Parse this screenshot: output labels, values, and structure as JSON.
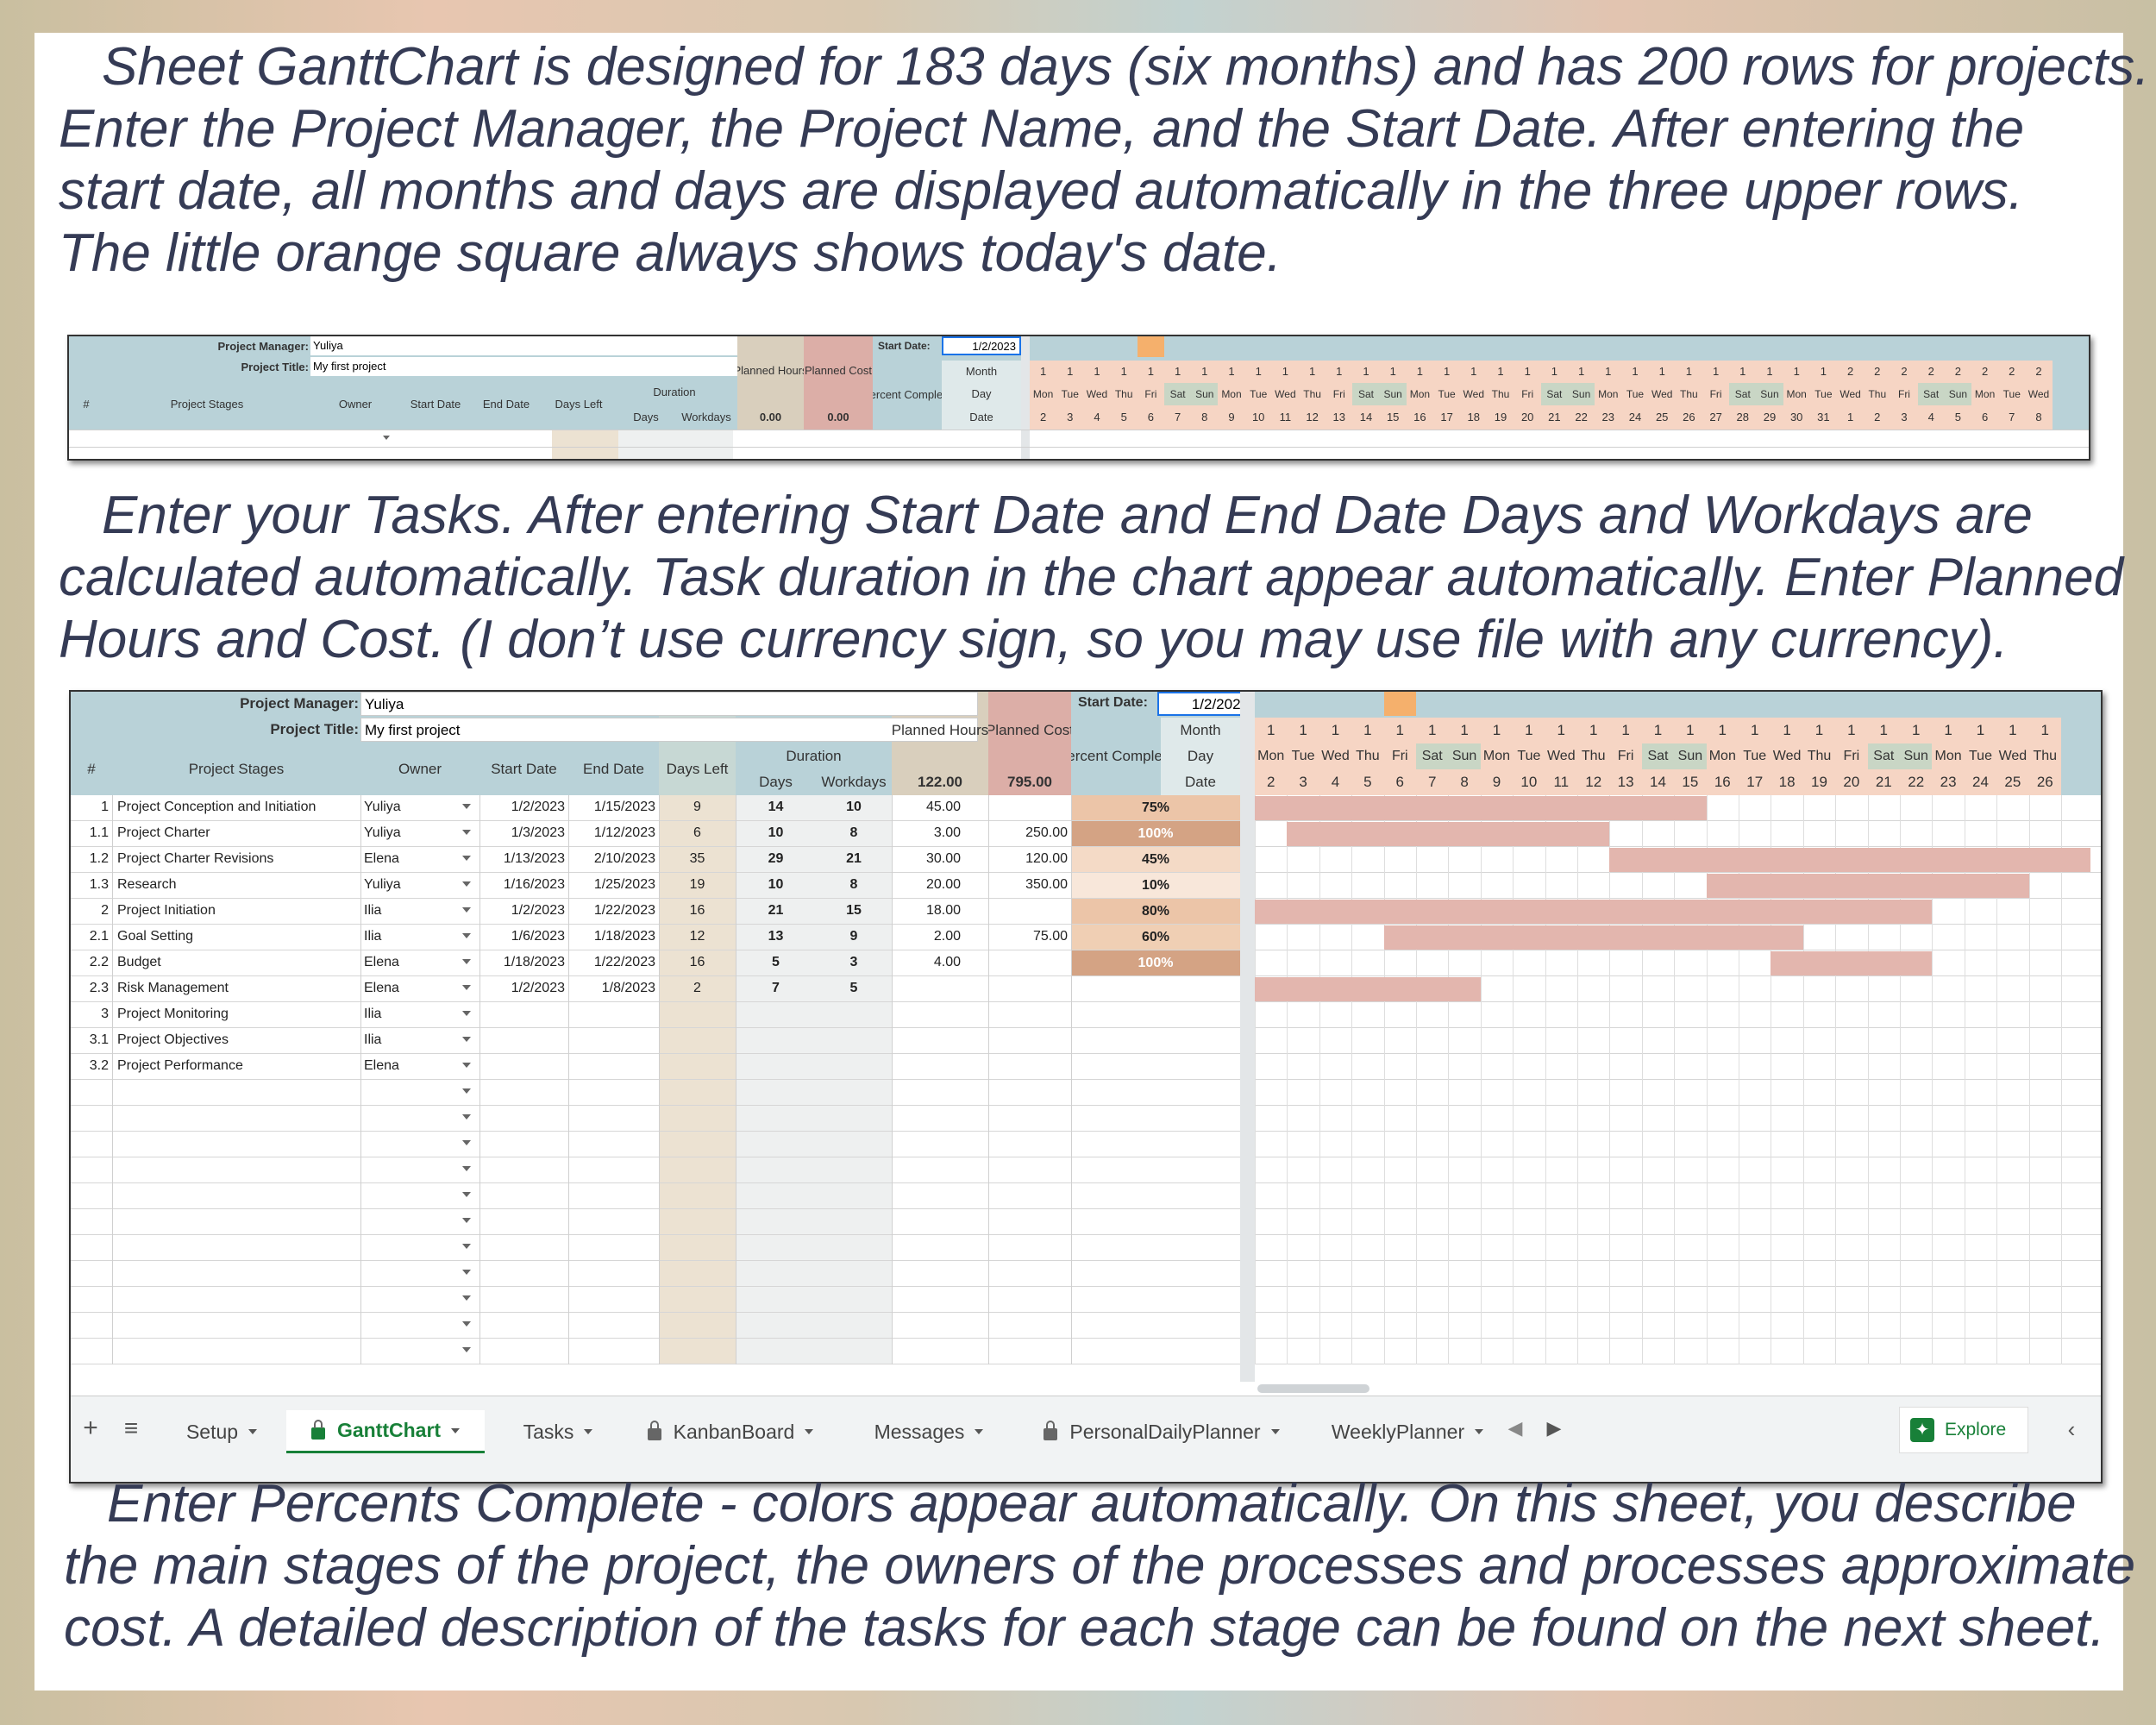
{
  "paragraphs": {
    "p1": [
      "Sheet GanttChart is designed for 183 days (six months) and has 200 rows for projects.",
      "Enter the Project Manager, the Project Name, and the Start Date. After entering the",
      "start date, all months and days are displayed automatically in the three upper rows.",
      "The little orange square always shows today's date."
    ],
    "p2": [
      "Enter your Tasks. After entering Start Date and End Date Days and Workdays are",
      "calculated automatically. Task duration in the chart appear automatically. Enter Planned",
      "Hours and Cost. (I don’t use currency sign, so you may use file with any currency)."
    ],
    "p3": [
      "Enter Percents Complete - colors appear automatically. On this sheet, you describe",
      "the main stages of the project, the owners of the processes and processes approximate",
      "cost. A detailed description of the tasks for each stage can be found on the next sheet."
    ]
  },
  "sheet": {
    "labels": {
      "manager": "Project Manager:",
      "title": "Project Title:",
      "start": "Start Date:",
      "hash": "#",
      "stages": "Project Stages",
      "owner": "Owner",
      "start_date": "Start Date",
      "end_date": "End Date",
      "days_left": "Days Left",
      "duration": "Duration",
      "days": "Days",
      "workdays": "Workdays",
      "planned_hours": "Planned Hours",
      "planned_cost": "Planned Cost",
      "percent": "Percent Complete",
      "month": "Month",
      "day": "Day",
      "date": "Date"
    },
    "manager": "Yuliya",
    "title": "My first project",
    "start": "1/2/2023",
    "totals_small": {
      "hours": "0.00",
      "cost": "0.00"
    },
    "totals": {
      "hours": "122.00",
      "cost": "795.00"
    },
    "days_small": [
      "Mon",
      "Tue",
      "Wed",
      "Thu",
      "Fri",
      "Sat",
      "Sun",
      "Mon",
      "Tue",
      "Wed",
      "Thu",
      "Fri",
      "Sat",
      "Sun",
      "Mon",
      "Tue",
      "Wed",
      "Thu",
      "Fri",
      "Sat",
      "Sun",
      "Mon",
      "Tue",
      "Wed",
      "Thu",
      "Fri",
      "Sat",
      "Sun",
      "Mon",
      "Tue",
      "Wed",
      "Thu",
      "Fri",
      "Sat",
      "Sun",
      "Mon",
      "Tue",
      "Wed"
    ],
    "months_small": [
      "1",
      "1",
      "1",
      "1",
      "1",
      "1",
      "1",
      "1",
      "1",
      "1",
      "1",
      "1",
      "1",
      "1",
      "1",
      "1",
      "1",
      "1",
      "1",
      "1",
      "1",
      "1",
      "1",
      "1",
      "1",
      "1",
      "1",
      "1",
      "1",
      "1",
      "2",
      "2",
      "2",
      "2",
      "2",
      "2",
      "2",
      "2"
    ],
    "dates_small": [
      "2",
      "3",
      "4",
      "5",
      "6",
      "7",
      "8",
      "9",
      "10",
      "11",
      "12",
      "13",
      "14",
      "15",
      "16",
      "17",
      "18",
      "19",
      "20",
      "21",
      "22",
      "23",
      "24",
      "25",
      "26",
      "27",
      "28",
      "29",
      "30",
      "31",
      "1",
      "2",
      "3",
      "4",
      "5",
      "6",
      "7",
      "8"
    ],
    "days_big": [
      "Mon",
      "Tue",
      "Wed",
      "Thu",
      "Fri",
      "Sat",
      "Sun",
      "Mon",
      "Tue",
      "Wed",
      "Thu",
      "Fri",
      "Sat",
      "Sun",
      "Mon",
      "Tue",
      "Wed",
      "Thu",
      "Fri",
      "Sat",
      "Sun",
      "Mon",
      "Tue",
      "Wed",
      "Thu"
    ],
    "dates_big": [
      "2",
      "3",
      "4",
      "5",
      "6",
      "7",
      "8",
      "9",
      "10",
      "11",
      "12",
      "13",
      "14",
      "15",
      "16",
      "17",
      "18",
      "19",
      "20",
      "21",
      "22",
      "23",
      "24",
      "25",
      "26"
    ],
    "rows": [
      {
        "n": "1",
        "stage": "Project Conception and Initiation",
        "owner": "Yuliya",
        "start": "1/2/2023",
        "end": "1/15/2023",
        "left": "9",
        "days": "14",
        "work": "10",
        "hours": "45.00",
        "cost": "",
        "pct": "75%",
        "level": 0.75
      },
      {
        "n": "1.1",
        "stage": "Project Charter",
        "owner": "Yuliya",
        "start": "1/3/2023",
        "end": "1/12/2023",
        "left": "6",
        "days": "10",
        "work": "8",
        "hours": "3.00",
        "cost": "250.00",
        "pct": "100%",
        "level": 1.0
      },
      {
        "n": "1.2",
        "stage": "Project Charter Revisions",
        "owner": "Elena",
        "start": "1/13/2023",
        "end": "2/10/2023",
        "left": "35",
        "days": "29",
        "work": "21",
        "hours": "30.00",
        "cost": "120.00",
        "pct": "45%",
        "level": 0.45
      },
      {
        "n": "1.3",
        "stage": "Research",
        "owner": "Yuliya",
        "start": "1/16/2023",
        "end": "1/25/2023",
        "left": "19",
        "days": "10",
        "work": "8",
        "hours": "20.00",
        "cost": "350.00",
        "pct": "10%",
        "level": 0.1
      },
      {
        "n": "2",
        "stage": "Project Initiation",
        "owner": "Ilia",
        "start": "1/2/2023",
        "end": "1/22/2023",
        "left": "16",
        "days": "21",
        "work": "15",
        "hours": "18.00",
        "cost": "",
        "pct": "80%",
        "level": 0.8
      },
      {
        "n": "2.1",
        "stage": "Goal Setting",
        "owner": "Ilia",
        "start": "1/6/2023",
        "end": "1/18/2023",
        "left": "12",
        "days": "13",
        "work": "9",
        "hours": "2.00",
        "cost": "75.00",
        "pct": "60%",
        "level": 0.6
      },
      {
        "n": "2.2",
        "stage": "Budget",
        "owner": "Elena",
        "start": "1/18/2023",
        "end": "1/22/2023",
        "left": "16",
        "days": "5",
        "work": "3",
        "hours": "4.00",
        "cost": "",
        "pct": "100%",
        "level": 1.0
      },
      {
        "n": "2.3",
        "stage": "Risk Management",
        "owner": "Elena",
        "start": "1/2/2023",
        "end": "1/8/2023",
        "left": "2",
        "days": "7",
        "work": "5",
        "hours": "",
        "cost": "",
        "pct": "",
        "level": 0
      },
      {
        "n": "3",
        "stage": "Project Monitoring",
        "owner": "Ilia",
        "start": "",
        "end": "",
        "left": "",
        "days": "",
        "work": "",
        "hours": "",
        "cost": "",
        "pct": "",
        "level": 0
      },
      {
        "n": "3.1",
        "stage": "Project Objectives",
        "owner": "Ilia",
        "start": "",
        "end": "",
        "left": "",
        "days": "",
        "work": "",
        "hours": "",
        "cost": "",
        "pct": "",
        "level": 0
      },
      {
        "n": "3.2",
        "stage": "Project Performance",
        "owner": "Elena",
        "start": "",
        "end": "",
        "left": "",
        "days": "",
        "work": "",
        "hours": "",
        "cost": "",
        "pct": "",
        "level": 0
      }
    ],
    "tabs": [
      "Setup",
      "GanttChart",
      "Tasks",
      "KanbanBoard",
      "Messages",
      "PersonalDailyPlanner",
      "WeeklyPlanner"
    ],
    "explore": "Explore"
  },
  "colors": {
    "text": "#353b55",
    "header_blue": "#b9d2d8",
    "header_tan": "#d9cfbd",
    "header_pink": "#dcaea7",
    "bar": "#e3b6ae",
    "today": "#f5b06c",
    "day_header": "#f6d5c4"
  }
}
